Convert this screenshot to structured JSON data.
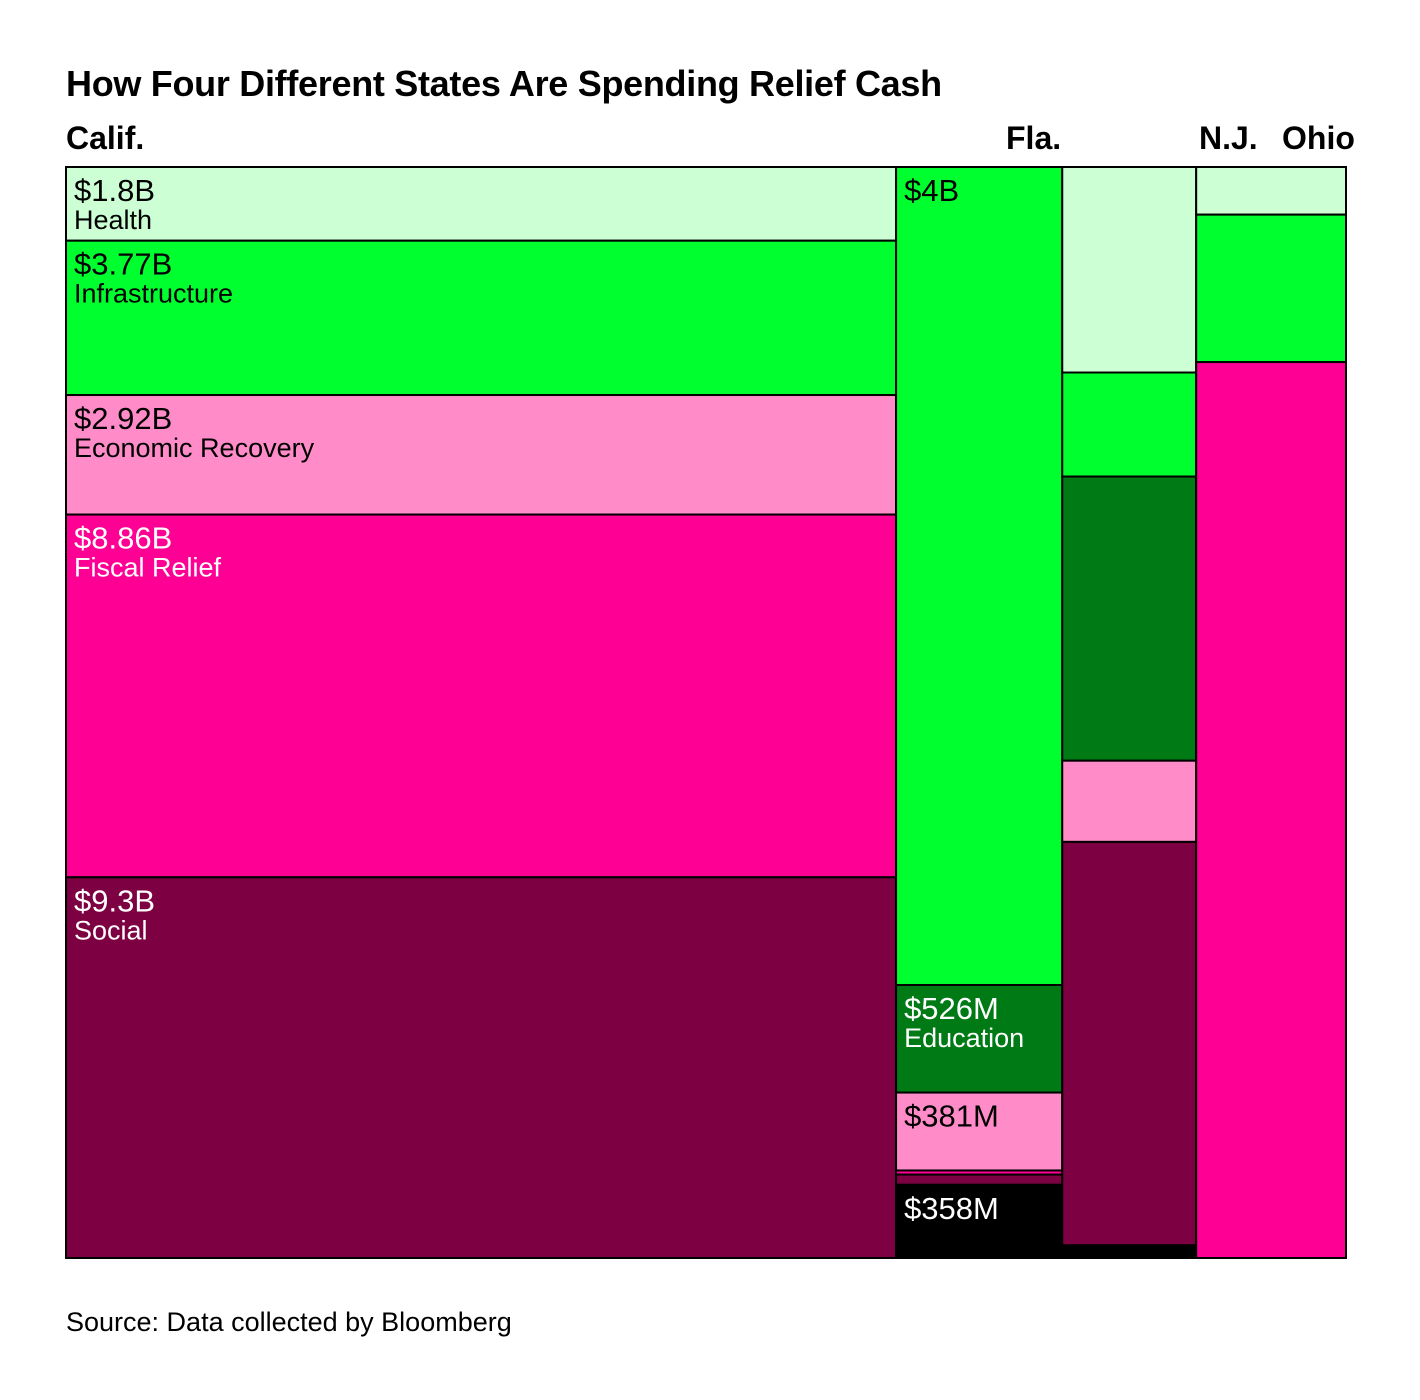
{
  "title": "How Four Different States Are Spending Relief Cash",
  "source": "Source: Data collected by Bloomberg",
  "colors": {
    "Health": "#ccffd4",
    "Infrastructure": "#00ff2e",
    "Education": "#007a14",
    "Economic Recovery": "#ff8cc8",
    "Fiscal Relief": "#ff0094",
    "Social": "#7d0042",
    "Other": "#000000"
  },
  "chart_data": {
    "type": "treemap",
    "unit": "USD billions",
    "states": [
      {
        "name": "Calif.",
        "segments": [
          {
            "category": "Health",
            "value": 1.8,
            "label": "$1.8B",
            "name_label": "Health"
          },
          {
            "category": "Infrastructure",
            "value": 3.77,
            "label": "$3.77B",
            "name_label": "Infrastructure"
          },
          {
            "category": "Economic Recovery",
            "value": 2.92,
            "label": "$2.92B",
            "name_label": "Economic Recovery"
          },
          {
            "category": "Fiscal Relief",
            "value": 8.86,
            "label": "$8.86B",
            "name_label": "Fiscal Relief"
          },
          {
            "category": "Social",
            "value": 9.3,
            "label": "$9.3B",
            "name_label": "Social"
          }
        ]
      },
      {
        "name": "Fla.",
        "segments": [
          {
            "category": "Infrastructure",
            "value": 4.0,
            "label": "$4B"
          },
          {
            "category": "Education",
            "value": 0.526,
            "label": "$526M",
            "name_label": "Education"
          },
          {
            "category": "Economic Recovery",
            "value": 0.381,
            "label": "$381M"
          },
          {
            "category": "Fiscal Relief",
            "value": 0.02
          },
          {
            "category": "Social",
            "value": 0.05
          },
          {
            "category": "Other",
            "value": 0.358,
            "label": "$358M"
          }
        ]
      },
      {
        "name": "N.J.",
        "segments": [
          {
            "category": "Health",
            "value": 0.81
          },
          {
            "category": "Infrastructure",
            "value": 0.41
          },
          {
            "category": "Education",
            "value": 1.12
          },
          {
            "category": "Economic Recovery",
            "value": 0.32
          },
          {
            "category": "Social",
            "value": 1.59
          },
          {
            "category": "Other",
            "value": 0.05
          }
        ]
      },
      {
        "name": "Ohio",
        "segments": [
          {
            "category": "Health",
            "value": 0.21
          },
          {
            "category": "Infrastructure",
            "value": 0.65
          },
          {
            "category": "Fiscal Relief",
            "value": 3.95
          }
        ]
      }
    ]
  }
}
